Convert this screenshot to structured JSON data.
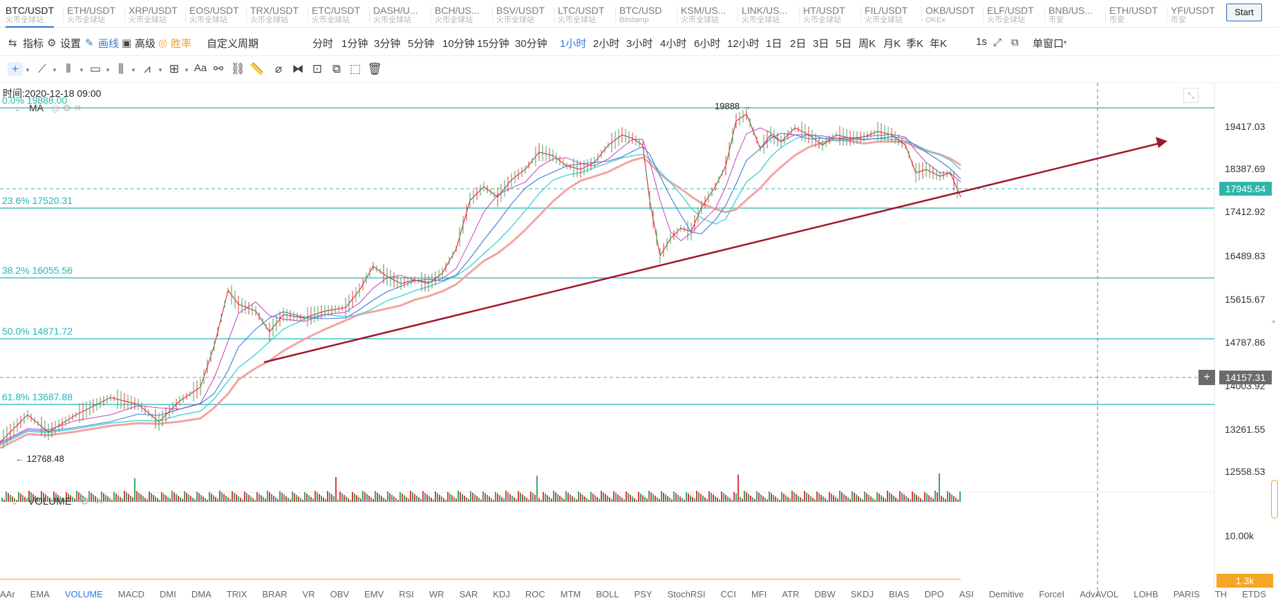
{
  "tabs": [
    {
      "pair": "BTC/USDT",
      "source": "火币全球站",
      "active": true
    },
    {
      "pair": "ETH/USDT",
      "source": "火币全球站"
    },
    {
      "pair": "XRP/USDT",
      "source": "火币全球站"
    },
    {
      "pair": "EOS/USDT",
      "source": "火币全球站"
    },
    {
      "pair": "TRX/USDT",
      "source": "火币全球站"
    },
    {
      "pair": "ETC/USDT",
      "source": "火币全球站"
    },
    {
      "pair": "DASH/U...",
      "source": "火币全球站"
    },
    {
      "pair": "BCH/US...",
      "source": "火币全球站"
    },
    {
      "pair": "BSV/USDT",
      "source": "火币全球站"
    },
    {
      "pair": "LTC/USDT",
      "source": "火币全球站"
    },
    {
      "pair": "BTC/USD",
      "source": "Bitstamp"
    },
    {
      "pair": "KSM/US...",
      "source": "火币全球站"
    },
    {
      "pair": "LINK/US...",
      "source": "火币全球站"
    },
    {
      "pair": "HT/USDT",
      "source": "火币全球站"
    },
    {
      "pair": "FIL/USDT",
      "source": "火币全球站"
    },
    {
      "pair": "OKB/USDT",
      "source": "OKEx"
    },
    {
      "pair": "ELF/USDT",
      "source": "火币全球站"
    },
    {
      "pair": "BNB/US...",
      "source": "币安"
    },
    {
      "pair": "ETH/USDT",
      "source": "币安"
    },
    {
      "pair": "YFI/USDT",
      "source": "币安"
    }
  ],
  "start_label": "Start",
  "toolbar": {
    "indicator": "指标",
    "settings": "设置",
    "drawline": "画线",
    "advanced": "高级",
    "winrate": "胜率",
    "custom_period": "自定义周期",
    "periods": [
      "分时",
      "1分钟",
      "3分钟",
      "5分钟",
      "10分钟",
      "15分钟",
      "30分钟",
      "1小时",
      "2小时",
      "3小时",
      "4小时",
      "6小时",
      "12小时",
      "1日",
      "2日",
      "3日",
      "5日",
      "周K",
      "月K",
      "季K",
      "年K"
    ],
    "active_period": "1小时",
    "refresh": "1s",
    "window_mode": "单窗口"
  },
  "chart": {
    "time_label": "时间:2020-12-18 09:00",
    "ma_label": "MA",
    "volume_label": "VOLUME",
    "high_marker": "19888",
    "low_marker": "12768.48",
    "fib_levels": [
      {
        "label": "0.0% 19888.00",
        "price": 19888.0
      },
      {
        "label": "23.6% 17520.31",
        "price": 17520.31
      },
      {
        "label": "38.2% 16055.56",
        "price": 16055.56
      },
      {
        "label": "50.0% 14871.72",
        "price": 14871.72
      },
      {
        "label": "61.8% 13687.88",
        "price": 13687.88
      }
    ],
    "price_axis": [
      "19417.03",
      "18387.69",
      "17412.92",
      "16489.83",
      "15615.67",
      "14787.86",
      "14003.92",
      "13261.55",
      "12558.53"
    ],
    "current_price": "17945.64",
    "crosshair_price": "14157.31",
    "crosshair_plus": "+",
    "volume_axis": "10.00k",
    "volume_current": "1.3k",
    "colors": {
      "fib": "#22b8b0",
      "trend": "#a0172b",
      "up": "#3aa46a",
      "down": "#e2373c",
      "price_box": "#2fb5a8",
      "vol_box": "#f5a623"
    }
  },
  "bottom_indicators": [
    "AAr",
    "EMA",
    "VOLUME",
    "MACD",
    "DMI",
    "DMA",
    "TRIX",
    "BRAR",
    "VR",
    "OBV",
    "EMV",
    "RSI",
    "WR",
    "SAR",
    "KDJ",
    "ROC",
    "MTM",
    "BOLL",
    "PSY",
    "StochRSI",
    "CCI",
    "MFI",
    "ATR",
    "DBW",
    "SKDJ",
    "BIAS",
    "DPO",
    "ASI",
    "Demitive",
    "ForceI",
    "AdvAVOL",
    "LOHB",
    "PARIS",
    "TH",
    "ETDS"
  ]
}
